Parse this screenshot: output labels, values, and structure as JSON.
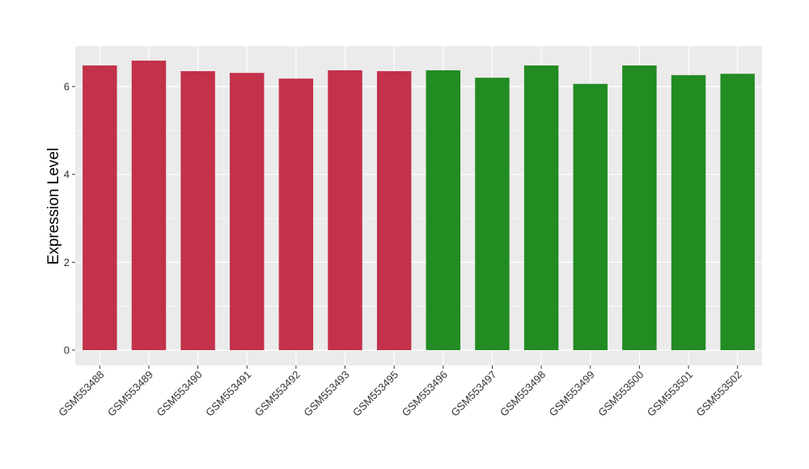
{
  "chart_data": {
    "type": "bar",
    "title": "",
    "xlabel": "",
    "ylabel": "Expression Level",
    "ylim": [
      -0.35,
      6.92
    ],
    "yticks": [
      0,
      2,
      4,
      6
    ],
    "grid": true,
    "categories": [
      "GSM553488",
      "GSM553489",
      "GSM553490",
      "GSM553491",
      "GSM553492",
      "GSM553493",
      "GSM553495",
      "GSM553496",
      "GSM553497",
      "GSM553498",
      "GSM553499",
      "GSM553500",
      "GSM553501",
      "GSM553502"
    ],
    "values": [
      6.48,
      6.59,
      6.35,
      6.31,
      6.18,
      6.37,
      6.35,
      6.37,
      6.2,
      6.48,
      6.06,
      6.48,
      6.26,
      6.29
    ],
    "bar_colors": [
      "#C3314A",
      "#C3314A",
      "#C3314A",
      "#C3314A",
      "#C3314A",
      "#C3314A",
      "#C3314A",
      "#228B22",
      "#228B22",
      "#228B22",
      "#228B22",
      "#228B22",
      "#228B22",
      "#228B22"
    ],
    "panel_background": "#EBEBEB"
  }
}
